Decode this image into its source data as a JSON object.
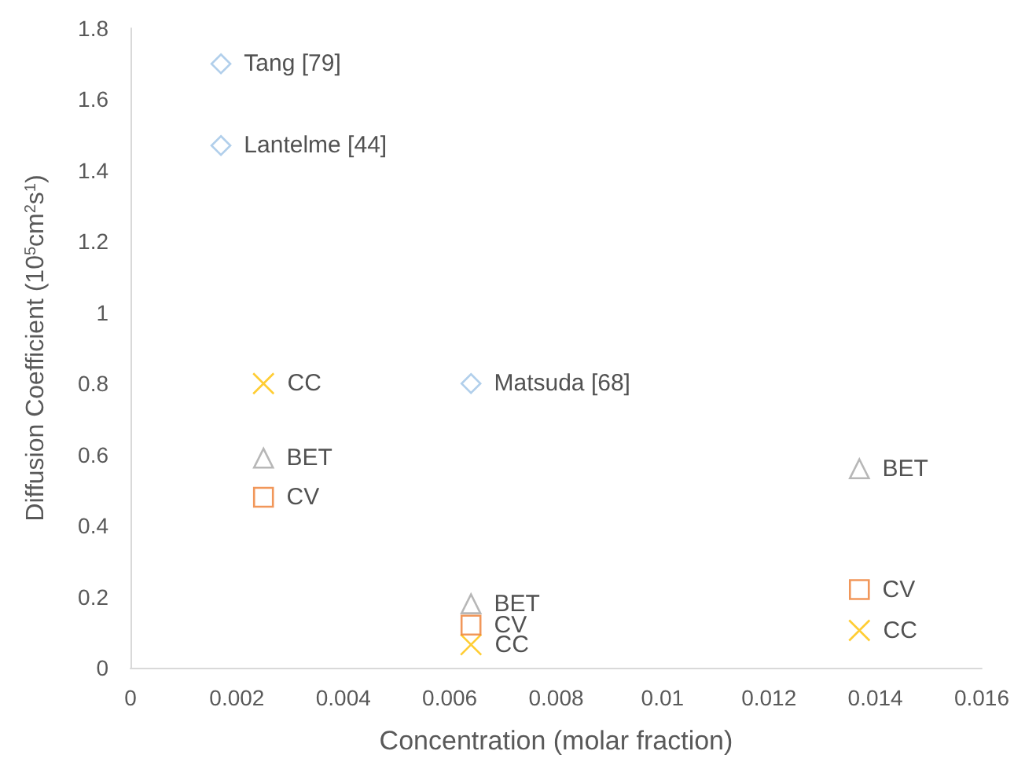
{
  "chart_data": {
    "type": "scatter",
    "xlabel": "Concentration (molar fraction)",
    "ylabel": "Diffusion Coefficient (10$^{5}$cm$^{2}$s$^{1}$)",
    "series": [
      {
        "name": "Tang [79]",
        "color": "#9dc3e6",
        "marker": "diamond",
        "x": [
          0.0017
        ],
        "values": [
          1.7
        ]
      },
      {
        "name": "Lantelme [44]",
        "color": "#9dc3e6",
        "marker": "diamond",
        "x": [
          0.0017
        ],
        "values": [
          1.47
        ]
      },
      {
        "name": "Matsuda [68]",
        "color": "#9dc3e6",
        "marker": "diamond",
        "x": [
          0.0064
        ],
        "values": [
          0.8
        ]
      },
      {
        "name": "CC",
        "color": "#ffc000",
        "marker": "cross",
        "x": [
          0.0025,
          0.0064,
          0.0137
        ],
        "values": [
          0.8,
          0.065,
          0.105
        ]
      },
      {
        "name": "BET",
        "color": "#a5a5a5",
        "marker": "triangle",
        "x": [
          0.0025,
          0.0064,
          0.0137
        ],
        "values": [
          0.59,
          0.18,
          0.56
        ]
      },
      {
        "name": "CV",
        "color": "#ed7d31",
        "marker": "square",
        "x": [
          0.0025,
          0.0064,
          0.0137
        ],
        "values": [
          0.48,
          0.12,
          0.22
        ]
      }
    ],
    "xlim": [
      0,
      0.016
    ],
    "xticks": [
      0,
      0.002,
      0.004,
      0.006,
      0.008,
      0.01,
      0.012,
      0.014,
      0.016
    ],
    "ylim": [
      0,
      1.8
    ],
    "yticks": [
      0,
      0.2,
      0.4,
      0.6,
      0.8,
      1,
      1.2,
      1.4,
      1.6,
      1.8
    ],
    "grid": false,
    "legend": false
  }
}
